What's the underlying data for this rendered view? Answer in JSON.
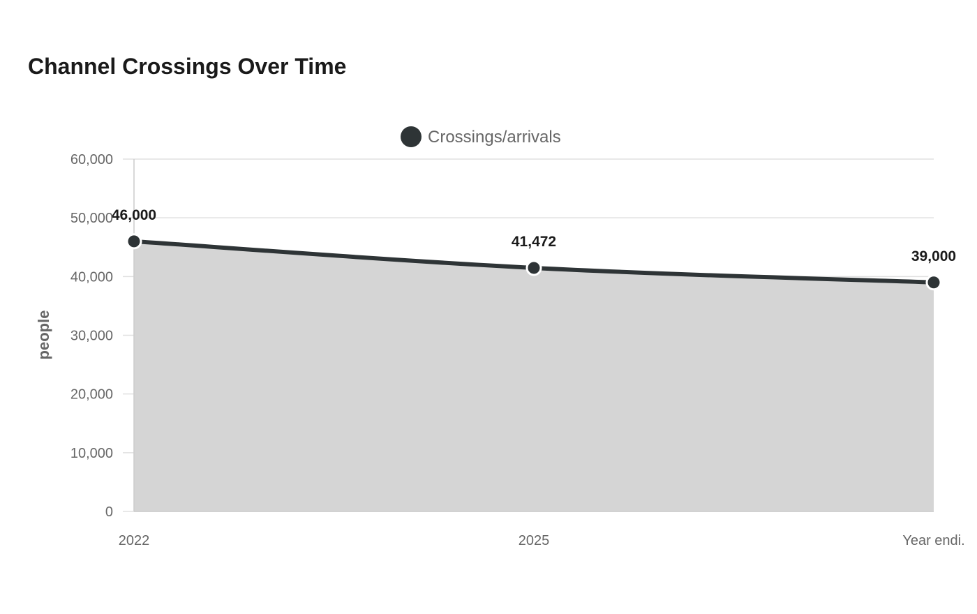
{
  "chart_data": {
    "type": "area",
    "title": "Channel Crossings Over Time",
    "xlabel": "",
    "ylabel": "people",
    "categories": [
      "2022",
      "2025",
      "Year endi."
    ],
    "series": [
      {
        "name": "Crossings/arrivals",
        "values": [
          46000,
          41472,
          39000
        ]
      }
    ],
    "data_labels": [
      "46,000",
      "41,472",
      "39,000"
    ],
    "ylim": [
      0,
      60000
    ],
    "yticks": [
      0,
      10000,
      20000,
      30000,
      40000,
      50000,
      60000
    ],
    "ytick_labels": [
      "0",
      "10,000",
      "20,000",
      "30,000",
      "40,000",
      "50,000",
      "60,000"
    ],
    "grid": true,
    "legend_position": "top-center",
    "colors": {
      "line": "#2e3436",
      "area": "#d5d5d5",
      "grid": "#e0e0e0",
      "axis": "#cccccc"
    }
  }
}
